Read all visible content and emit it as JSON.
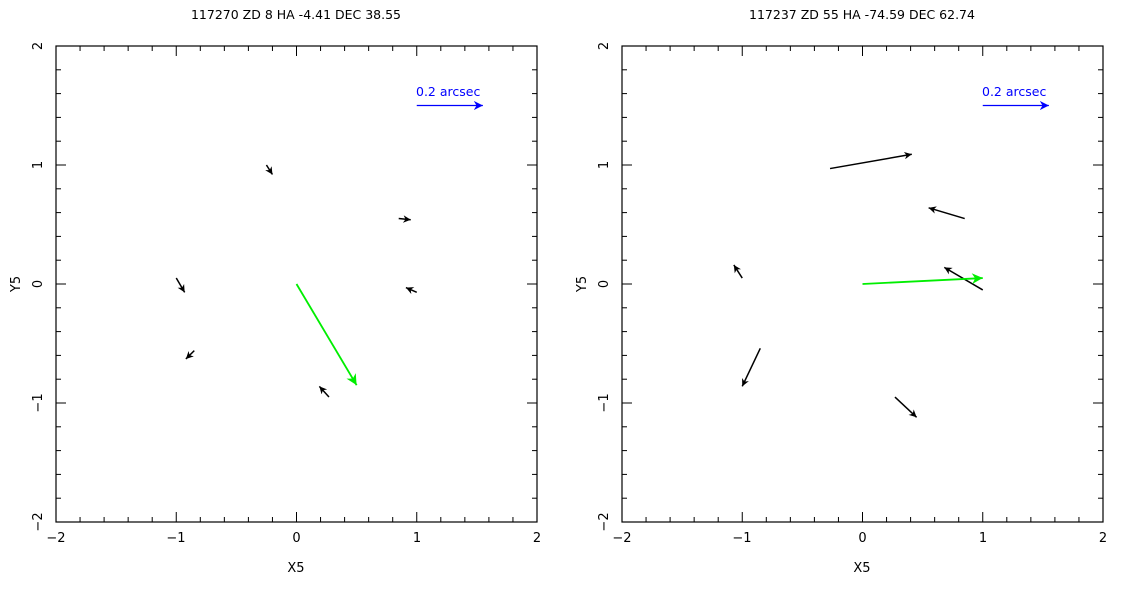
{
  "chart_data": [
    {
      "type": "vector_field",
      "title": "117270 ZD 8 HA -4.41  DEC 38.55",
      "xlabel": "X5",
      "ylabel": "Y5",
      "xlim": [
        -2,
        2
      ],
      "ylim": [
        -2,
        2
      ],
      "xticks": [
        "−2",
        "−1",
        "0",
        "1",
        "2"
      ],
      "yticks": [
        "−2",
        "−1",
        "0",
        "1",
        "2"
      ],
      "scale_label": "0.2 arcsec",
      "scale_color": "#0000ff",
      "scale_arrow": {
        "x": 1.0,
        "y": 1.5,
        "dx": 0.55,
        "dy": 0
      },
      "mean_color": "#00ee00",
      "mean_vector": {
        "x": 0,
        "y": 0,
        "dx": 0.5,
        "dy": -0.85
      },
      "vector_color": "#000000",
      "vectors": [
        {
          "x": -0.25,
          "y": 1.0,
          "dx": 0.05,
          "dy": -0.08
        },
        {
          "x": 0.85,
          "y": 0.55,
          "dx": 0.1,
          "dy": -0.01
        },
        {
          "x": -1.0,
          "y": 0.05,
          "dx": 0.07,
          "dy": -0.12
        },
        {
          "x": 1.0,
          "y": -0.07,
          "dx": -0.09,
          "dy": 0.04
        },
        {
          "x": -0.85,
          "y": -0.56,
          "dx": -0.07,
          "dy": -0.07
        },
        {
          "x": 0.27,
          "y": -0.95,
          "dx": -0.08,
          "dy": 0.09
        }
      ]
    },
    {
      "type": "vector_field",
      "title": "117237 ZD 55 HA -74.59  DEC 62.74",
      "xlabel": "X5",
      "ylabel": "Y5",
      "xlim": [
        -2,
        2
      ],
      "ylim": [
        -2,
        2
      ],
      "xticks": [
        "−2",
        "−1",
        "0",
        "1",
        "2"
      ],
      "yticks": [
        "−2",
        "−1",
        "0",
        "1",
        "2"
      ],
      "scale_label": "0.2 arcsec",
      "scale_color": "#0000ff",
      "scale_arrow": {
        "x": 1.0,
        "y": 1.5,
        "dx": 0.55,
        "dy": 0
      },
      "mean_color": "#00ee00",
      "mean_vector": {
        "x": 0,
        "y": 0,
        "dx": 1.0,
        "dy": 0.05
      },
      "vector_color": "#000000",
      "vectors": [
        {
          "x": -0.27,
          "y": 0.97,
          "dx": 0.68,
          "dy": 0.12
        },
        {
          "x": 0.85,
          "y": 0.55,
          "dx": -0.3,
          "dy": 0.09
        },
        {
          "x": 1.0,
          "y": -0.05,
          "dx": -0.32,
          "dy": 0.19
        },
        {
          "x": -1.0,
          "y": 0.05,
          "dx": -0.07,
          "dy": 0.11
        },
        {
          "x": -0.85,
          "y": -0.54,
          "dx": -0.15,
          "dy": -0.32
        },
        {
          "x": 0.27,
          "y": -0.95,
          "dx": 0.18,
          "dy": -0.17
        }
      ]
    }
  ]
}
